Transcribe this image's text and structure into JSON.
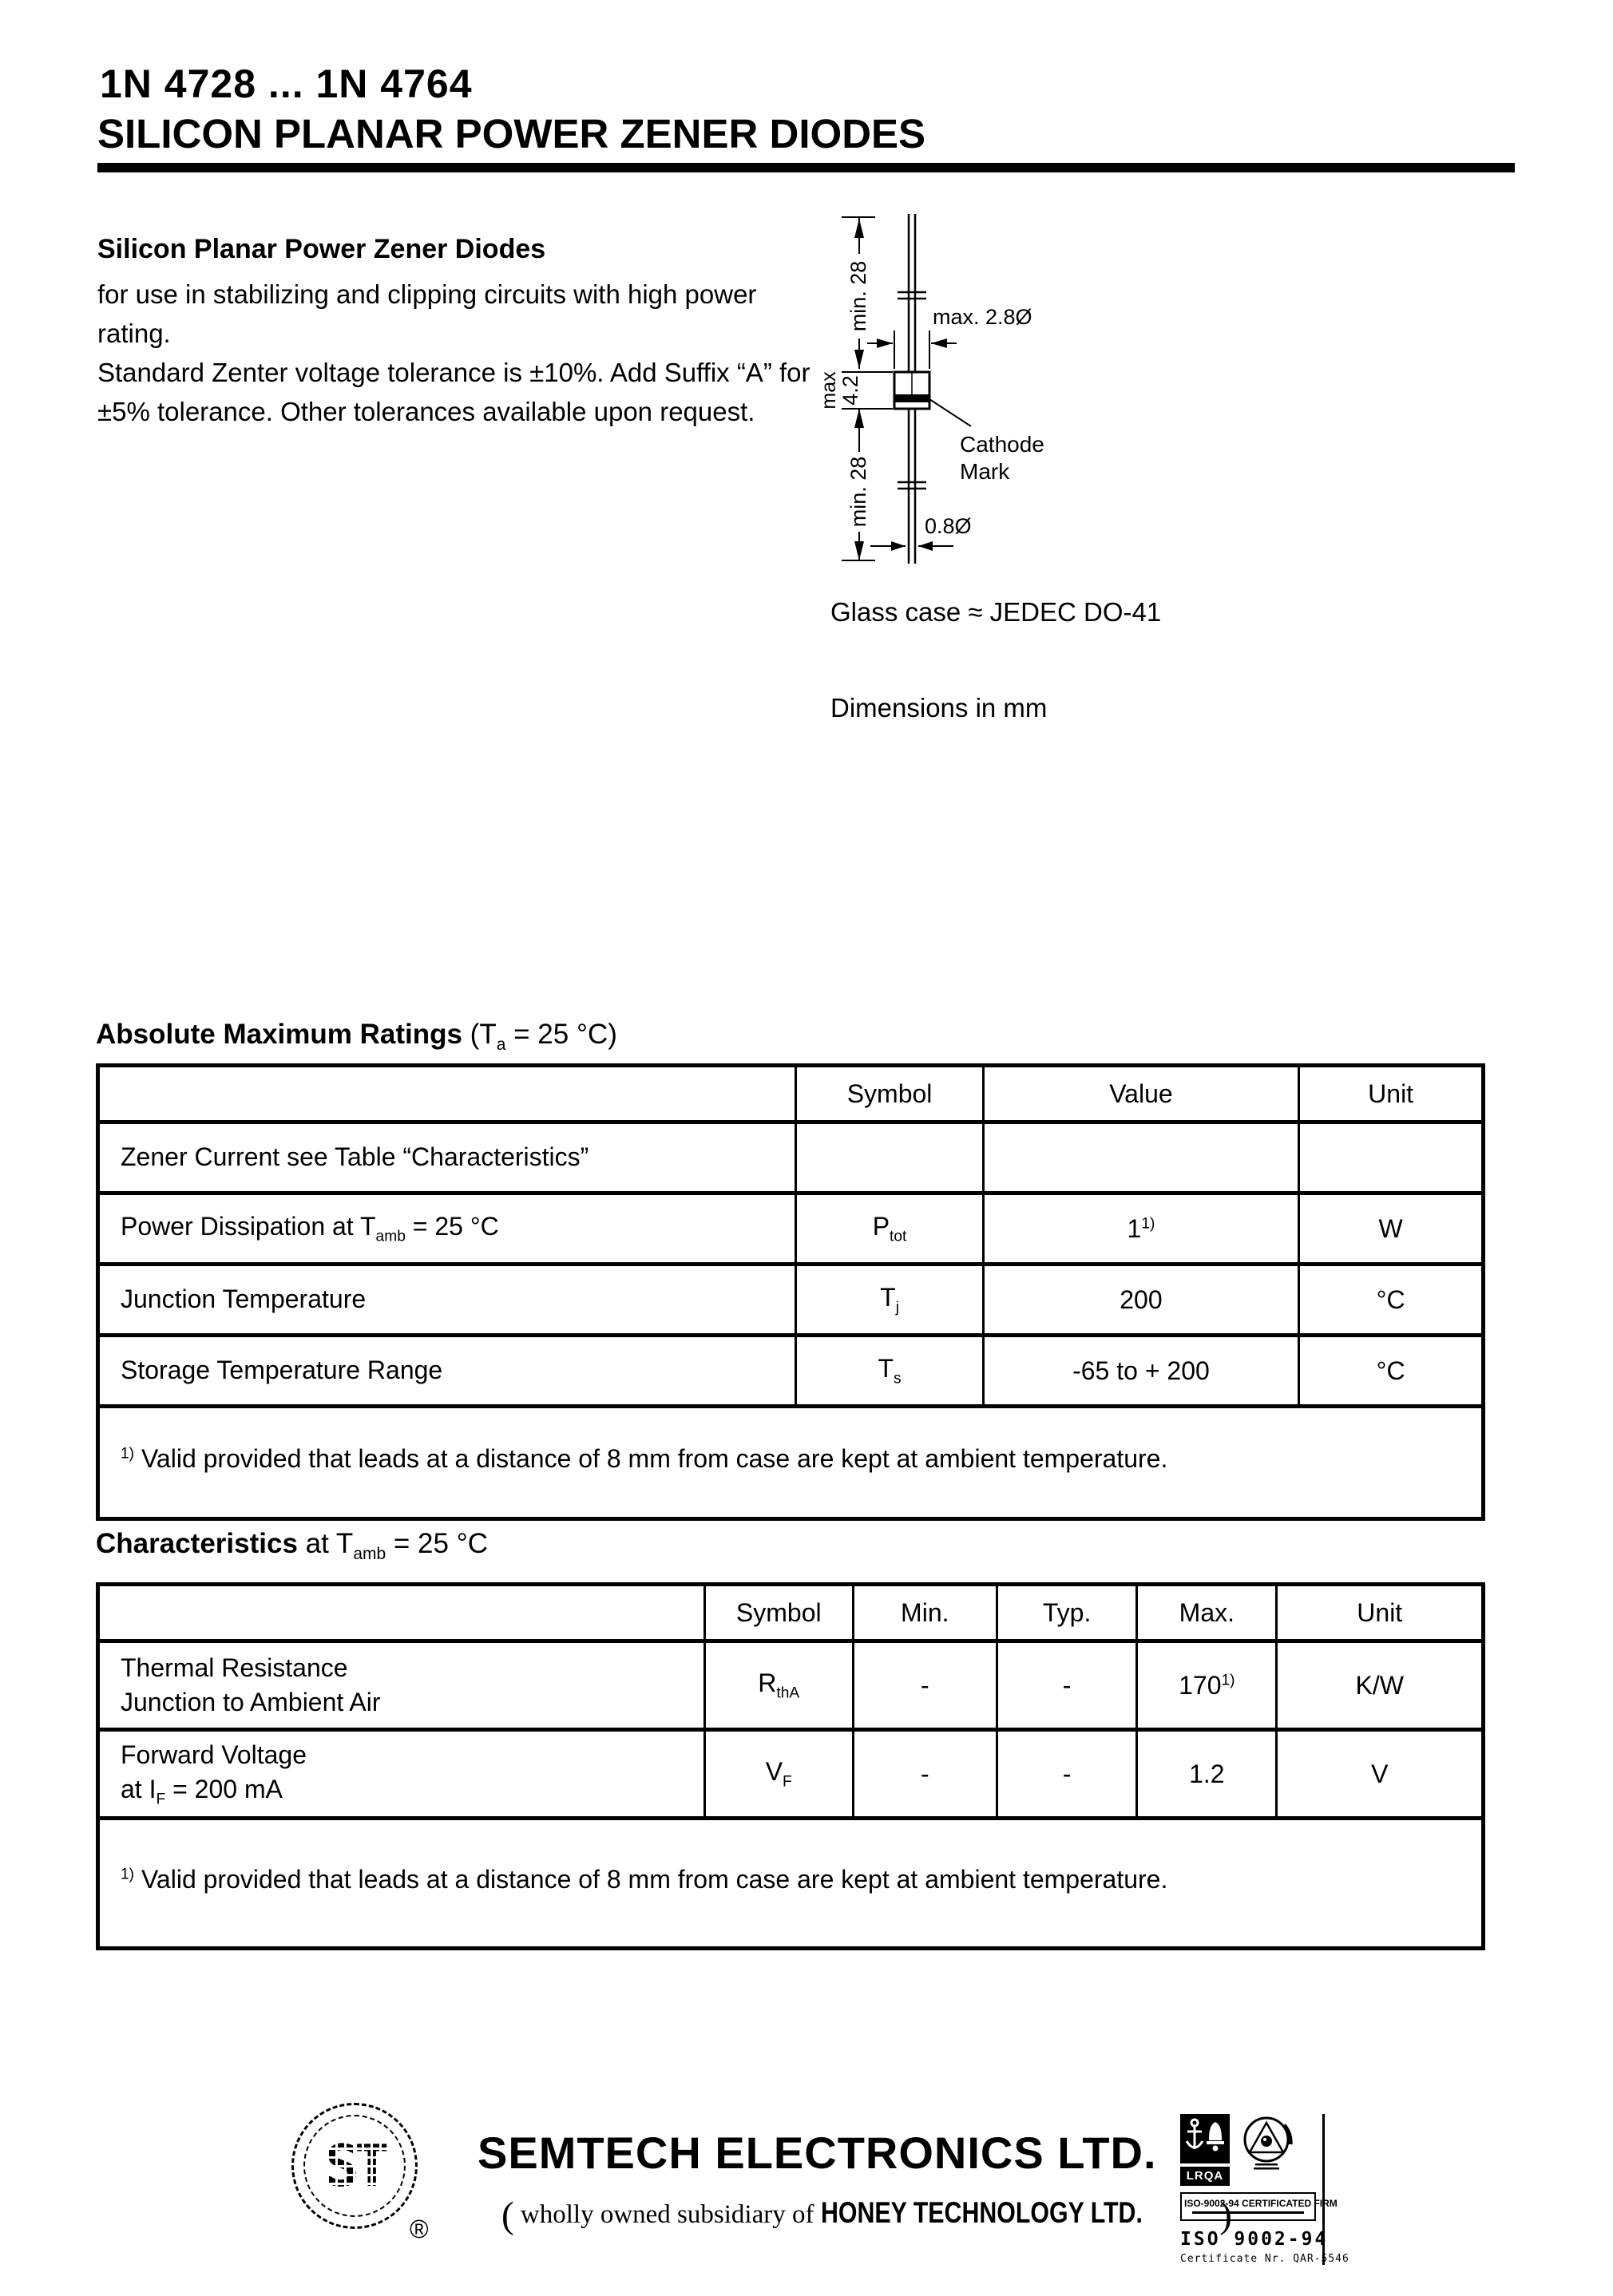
{
  "header": {
    "part_range": "1N 4728 ...  1N 4764",
    "title": "SILICON PLANAR POWER ZENER DIODES"
  },
  "intro": {
    "heading": "Silicon Planar Power Zener Diodes",
    "lines": [
      "for use in stabilizing and clipping circuits with high power rating.",
      "Standard Zenter voltage tolerance is ±10%. Add Suffix “A” for",
      "±5% tolerance. Other tolerances available upon request."
    ]
  },
  "package": {
    "case_note": "Glass case ≈ JEDEC DO-41",
    "dimensions_note": "Dimensions in mm",
    "diagram": {
      "lead_top_length": "min. 28",
      "body_diameter": "max. 2.8Ø",
      "body_length_line1": "max",
      "body_length_line2": "4.2",
      "cathode_line1": "Cathode",
      "cathode_line2": "Mark",
      "lead_bottom_length": "min. 28",
      "lead_diameter": "0.8Ø"
    }
  },
  "abs_max": {
    "title": "Absolute Maximum Ratings",
    "cond_pre": " (T",
    "cond_sub": "a",
    "cond_post": " = 25 °C)",
    "headers": [
      "",
      "Symbol",
      "Value",
      "Unit"
    ],
    "rows": [
      {
        "cells": [
          [
            "Zener Current see Table “Characteristics”"
          ],
          [
            ""
          ],
          [
            ""
          ],
          [
            ""
          ]
        ]
      },
      {
        "cells": [
          [
            "Power Dissipation at T",
            {
              "sub": "amb"
            },
            " = 25 °C"
          ],
          [
            "P",
            {
              "sub": "tot"
            }
          ],
          [
            "1",
            {
              "sup": "1)"
            }
          ],
          [
            "W"
          ]
        ]
      },
      {
        "cells": [
          [
            "Junction Temperature"
          ],
          [
            "T",
            {
              "sub": "j"
            }
          ],
          [
            "200"
          ],
          [
            "°C"
          ]
        ]
      },
      {
        "cells": [
          [
            "Storage Temperature Range"
          ],
          [
            "T",
            {
              "sub": "s"
            }
          ],
          [
            "-65 to + 200"
          ],
          [
            "°C"
          ]
        ]
      }
    ],
    "footnote": [
      {
        "sup": "1)"
      },
      " Valid provided that leads at a distance of 8 mm from case are kept at ambient temperature."
    ]
  },
  "characteristics": {
    "title": "Characteristics",
    "cond_pre": " at T",
    "cond_sub": "amb",
    "cond_post": " = 25 °C",
    "headers": [
      "",
      "Symbol",
      "Min.",
      "Typ.",
      "Max.",
      "Unit"
    ],
    "rows": [
      {
        "cells": [
          [
            "Thermal Resistance",
            {
              "br": true
            },
            "Junction to Ambient Air"
          ],
          [
            "R",
            {
              "sub": "thA"
            }
          ],
          [
            "-"
          ],
          [
            "-"
          ],
          [
            "170",
            {
              "sup": "1)"
            }
          ],
          [
            "K/W"
          ]
        ]
      },
      {
        "cells": [
          [
            "Forward Voltage",
            {
              "br": true
            },
            "at I",
            {
              "sub": "F"
            },
            " = 200 mA"
          ],
          [
            "V",
            {
              "sub": "F"
            }
          ],
          [
            "-"
          ],
          [
            "-"
          ],
          [
            "1.2"
          ],
          [
            "V"
          ]
        ]
      }
    ],
    "footnote": [
      {
        "sup": "1)"
      },
      " Valid provided that leads at a distance of 8 mm from case are kept at ambient temperature."
    ]
  },
  "footer": {
    "logo_text": "ST",
    "registered_mark": "®",
    "company": "SEMTECH ELECTRONICS LTD.",
    "subsidiary_open": "(",
    "subsidiary_text": " wholly owned subsidiary of ",
    "parent_company": "HONEY TECHNOLOGY LTD.",
    "subsidiary_close": ")",
    "cert": {
      "badge1_label": "LRQA",
      "firm_line": "ISO-9002-94 CERTIFICATED FIRM",
      "iso_line": "ISO 9002-94",
      "certificate_line": "Certificate Nr. QAR-5546"
    }
  }
}
